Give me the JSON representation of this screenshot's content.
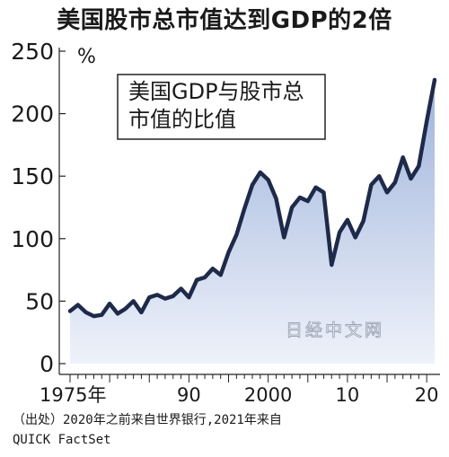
{
  "chart_data": {
    "type": "area",
    "title": "美国股市总市值达到GDP的2倍",
    "annotation": "美国GDP与股市总\n市值的比值",
    "ylabel_unit": "%",
    "ylim": [
      0,
      250
    ],
    "xlim": [
      1975,
      2021
    ],
    "y_ticks": [
      0,
      50,
      100,
      150,
      200,
      250
    ],
    "x_tick_labels": [
      {
        "x": 1975,
        "label": "1975年"
      },
      {
        "x": 1990,
        "label": "90"
      },
      {
        "x": 2000,
        "label": "2000"
      },
      {
        "x": 2010,
        "label": "10"
      },
      {
        "x": 2020,
        "label": "20"
      }
    ],
    "watermark": "日经中文网",
    "grid": false,
    "colors": {
      "line": "#1e2a4a",
      "fill_top": "#9fb3db",
      "fill_bottom": "#eef2fa"
    },
    "series": [
      {
        "x": [
          1975,
          1976,
          1977,
          1978,
          1979,
          1980,
          1981,
          1982,
          1983,
          1984,
          1985,
          1986,
          1987,
          1988,
          1989,
          1990,
          1991,
          1992,
          1993,
          1994,
          1995,
          1996,
          1997,
          1998,
          1999,
          2000,
          2001,
          2002,
          2003,
          2004,
          2005,
          2006,
          2007,
          2008,
          2009,
          2010,
          2011,
          2012,
          2013,
          2014,
          2015,
          2016,
          2017,
          2018,
          2019,
          2020,
          2021
        ],
        "values": [
          42,
          47,
          41,
          38,
          39,
          48,
          40,
          44,
          50,
          41,
          53,
          55,
          52,
          54,
          60,
          53,
          67,
          69,
          76,
          71,
          89,
          103,
          124,
          143,
          153,
          147,
          132,
          101,
          125,
          133,
          130,
          141,
          137,
          79,
          105,
          115,
          101,
          114,
          143,
          150,
          137,
          145,
          165,
          148,
          158,
          194,
          227
        ]
      }
    ]
  },
  "source_note": "（出处）2020年之前来自世界银行,2021年来自\nQUICK FactSet"
}
